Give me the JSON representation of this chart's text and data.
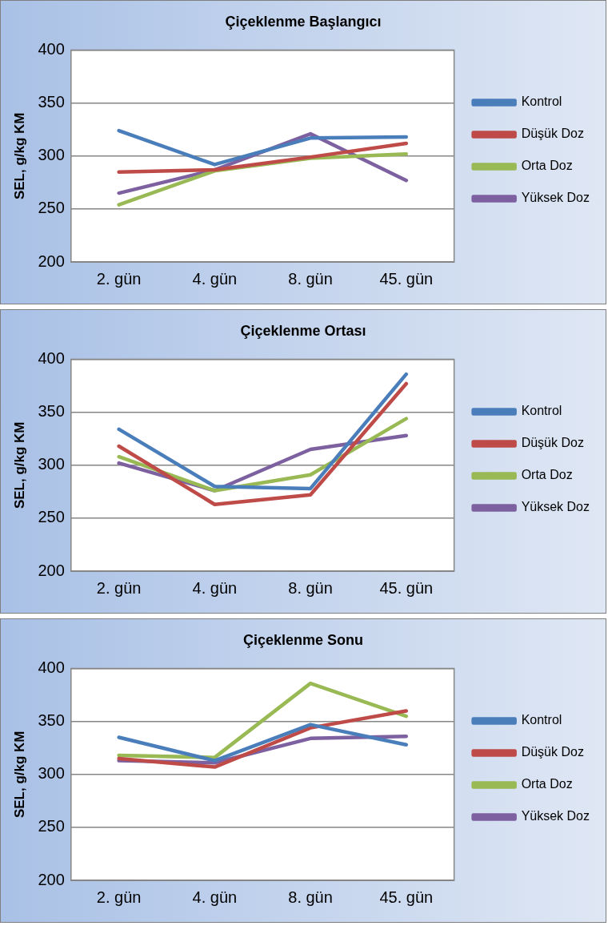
{
  "chart_data": [
    {
      "type": "line",
      "title": "Çiçeklenme Başlangıcı",
      "ylabel": "SEL, g/kg KM",
      "categories": [
        "2. gün",
        "4. gün",
        "8. gün",
        "45. gün"
      ],
      "ylim": [
        200,
        400
      ],
      "yticks": [
        200,
        250,
        300,
        350,
        400
      ],
      "grid": "y",
      "legend": "right",
      "marker": "none",
      "line_style": "solid",
      "series": [
        {
          "name": "Kontrol",
          "color": "#4a7ebb",
          "values": [
            324,
            292,
            317,
            318
          ]
        },
        {
          "name": "Düşük Doz",
          "color": "#be4b48",
          "values": [
            285,
            287,
            299,
            312
          ]
        },
        {
          "name": "Orta Doz",
          "color": "#98b954",
          "values": [
            254,
            286,
            298,
            302
          ]
        },
        {
          "name": "Yüksek Doz",
          "color": "#7d60a0",
          "values": [
            265,
            287,
            321,
            277
          ]
        }
      ]
    },
    {
      "type": "line",
      "title": "Çiçeklenme Ortası",
      "ylabel": "SEL, g/kg KM",
      "categories": [
        "2. gün",
        "4. gün",
        "8. gün",
        "45. gün"
      ],
      "ylim": [
        200,
        400
      ],
      "yticks": [
        200,
        250,
        300,
        350,
        400
      ],
      "grid": "y",
      "legend": "right",
      "marker": "none",
      "line_style": "solid",
      "series": [
        {
          "name": "Kontrol",
          "color": "#4a7ebb",
          "values": [
            334,
            280,
            278,
            386
          ]
        },
        {
          "name": "Düşük Doz",
          "color": "#be4b48",
          "values": [
            318,
            263,
            272,
            377
          ]
        },
        {
          "name": "Orta Doz",
          "color": "#98b954",
          "values": [
            308,
            276,
            291,
            344
          ]
        },
        {
          "name": "Yüksek Doz",
          "color": "#7d60a0",
          "values": [
            302,
            276,
            315,
            328
          ]
        }
      ]
    },
    {
      "type": "line",
      "title": "Çiçeklenme Sonu",
      "ylabel": "SEL, g/kg KM",
      "categories": [
        "2. gün",
        "4. gün",
        "8. gün",
        "45. gün"
      ],
      "ylim": [
        200,
        400
      ],
      "yticks": [
        200,
        250,
        300,
        350,
        400
      ],
      "grid": "y",
      "legend": "right",
      "marker": "none",
      "line_style": "solid",
      "series": [
        {
          "name": "Kontrol",
          "color": "#4a7ebb",
          "values": [
            335,
            313,
            347,
            328
          ]
        },
        {
          "name": "Düşük Doz",
          "color": "#be4b48",
          "values": [
            315,
            307,
            344,
            360
          ]
        },
        {
          "name": "Orta Doz",
          "color": "#98b954",
          "values": [
            318,
            316,
            386,
            355
          ]
        },
        {
          "name": "Yüksek Doz",
          "color": "#7d60a0",
          "values": [
            313,
            311,
            334,
            336
          ]
        }
      ]
    }
  ]
}
